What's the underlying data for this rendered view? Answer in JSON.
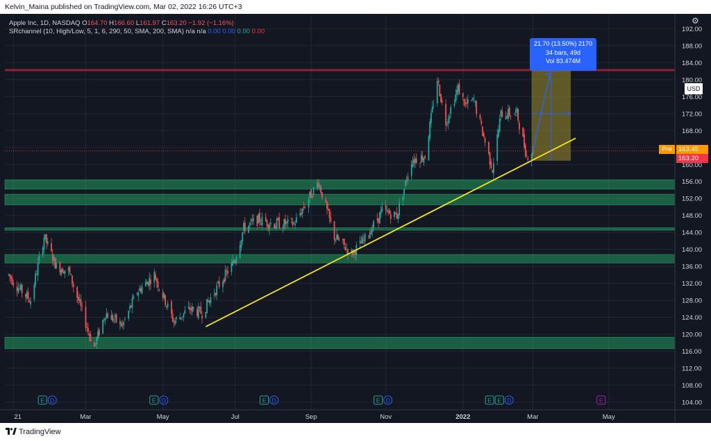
{
  "header": {
    "publish_line": "Kelvin_Maina published on TradingView.com, Mar 02, 2022 16:26 UTC+3"
  },
  "legend": {
    "symbol": "Apple Inc, 1D, NASDAQ",
    "open_label": "O",
    "open": "164.70",
    "high_label": "H",
    "high": "166.60",
    "low_label": "L",
    "low": "161.97",
    "close_label": "C",
    "close": "163.20",
    "change": "−1.92 (−1.16%)",
    "indicator": "SRchannel (10, High/Low, 5, 1, 6, 290, 50, SMA, 200, SMA)",
    "ind_na1": "n/a",
    "ind_na2": "n/a",
    "ind_v1": "0.00",
    "ind_v2": "0.00",
    "ind_v3": "0.00",
    "ind_v4": "0.00"
  },
  "measure": {
    "line1": "21.70 (13.50%) 2170",
    "line2": "34 bars, 49d",
    "line3": "Vol 83.474M"
  },
  "price_tags": {
    "pre_label": "Pre",
    "pre_price": "163.45",
    "last_price": "163.20"
  },
  "currency_badge": "USD",
  "settings_icon": "gear-icon",
  "footer": {
    "brand": "TradingView",
    "logo_icon": "tradingview-logo-icon"
  },
  "colors": {
    "background": "#131722",
    "up": "#26a69a",
    "down": "#ef5350",
    "sr_zone": "#1e8a57",
    "resistance": "#9c2433",
    "trendline": "#f5e51b",
    "measure": "#2962ff",
    "pre": "#ff9800",
    "last": "#f23645"
  },
  "chart_data": {
    "type": "candlestick",
    "instrument": "Apple Inc",
    "interval": "1D",
    "exchange": "NASDAQ",
    "y_axis": {
      "ticks": [
        104,
        108,
        112,
        116,
        120,
        124,
        128,
        132,
        136,
        140,
        144,
        148,
        152,
        156,
        160,
        164,
        168,
        172,
        176,
        180,
        184,
        188,
        192
      ],
      "range": [
        102.2,
        195.5
      ],
      "unit": "USD"
    },
    "x_axis": {
      "labels": [
        "21",
        "Mar",
        "May",
        "Jul",
        "Sep",
        "Nov",
        "2022",
        "Mar",
        "May"
      ],
      "label_dates": [
        "2021-01-01",
        "2021-03-01",
        "2021-05-03",
        "2021-07-01",
        "2021-09-01",
        "2021-11-01",
        "2022-01-03",
        "2022-03-01",
        "2022-05-02"
      ]
    },
    "price_path": [
      [
        "2020-12-28",
        134
      ],
      [
        "2021-01-05",
        131
      ],
      [
        "2021-01-15",
        128
      ],
      [
        "2021-01-26",
        143
      ],
      [
        "2021-02-05",
        136
      ],
      [
        "2021-02-15",
        135
      ],
      [
        "2021-03-04",
        120
      ],
      [
        "2021-03-08",
        117
      ],
      [
        "2021-03-17",
        125
      ],
      [
        "2021-03-31",
        122
      ],
      [
        "2021-04-12",
        130
      ],
      [
        "2021-04-26",
        134
      ],
      [
        "2021-05-12",
        123
      ],
      [
        "2021-05-25",
        126
      ],
      [
        "2021-06-04",
        125
      ],
      [
        "2021-06-14",
        130
      ],
      [
        "2021-06-30",
        137
      ],
      [
        "2021-07-08",
        145
      ],
      [
        "2021-07-20",
        147
      ],
      [
        "2021-08-02",
        146
      ],
      [
        "2021-08-18",
        146
      ],
      [
        "2021-09-07",
        156
      ],
      [
        "2021-09-20",
        143
      ],
      [
        "2021-10-04",
        139
      ],
      [
        "2021-10-14",
        142
      ],
      [
        "2021-10-29",
        149
      ],
      [
        "2021-11-10",
        148
      ],
      [
        "2021-11-22",
        161
      ],
      [
        "2021-12-03",
        162
      ],
      [
        "2021-12-13",
        180
      ],
      [
        "2021-12-20",
        170
      ],
      [
        "2021-12-30",
        178
      ],
      [
        "2022-01-05",
        174
      ],
      [
        "2022-01-12",
        175
      ],
      [
        "2022-01-27",
        159
      ],
      [
        "2022-02-03",
        172
      ],
      [
        "2022-02-10",
        172
      ],
      [
        "2022-02-16",
        172
      ],
      [
        "2022-02-24",
        162
      ],
      [
        "2022-03-01",
        163.2
      ]
    ],
    "candle_colors": {
      "up": "#26a69a",
      "down": "#ef5350"
    },
    "horizontal_zones": [
      {
        "type": "support",
        "from": 156.4,
        "to": 154.2
      },
      {
        "type": "support",
        "from": 153.0,
        "to": 150.5
      },
      {
        "type": "support",
        "from": 145.1,
        "to": 144.5
      },
      {
        "type": "support",
        "from": 138.8,
        "to": 136.8
      },
      {
        "type": "support",
        "from": 119.3,
        "to": 116.6
      },
      {
        "type": "resistance",
        "from": 182.5,
        "to": 182.0
      }
    ],
    "trendline": {
      "start": [
        "2021-06-07",
        121.8
      ],
      "end": [
        "2022-04-05",
        166.2
      ]
    },
    "projection_box": {
      "start": "2022-02-28",
      "end": "2022-04-01",
      "top": 182.5,
      "bottom": 160.9
    },
    "projection_arrow": {
      "start": [
        "2022-03-01",
        163.2
      ],
      "end": [
        "2022-03-15",
        181.5
      ]
    },
    "dotted_level": 163.2,
    "events": [
      {
        "date": "2021-01-27",
        "labels": [
          "E",
          "D"
        ]
      },
      {
        "date": "2021-04-28",
        "labels": [
          "E",
          "D"
        ]
      },
      {
        "date": "2021-07-27",
        "labels": [
          "E",
          "D"
        ]
      },
      {
        "date": "2021-10-28",
        "labels": [
          "E",
          "D"
        ]
      },
      {
        "date": "2022-01-27",
        "labels": [
          "E",
          "E",
          "D"
        ]
      },
      {
        "date": "2022-04-28",
        "labels": [
          "E"
        ]
      }
    ]
  }
}
